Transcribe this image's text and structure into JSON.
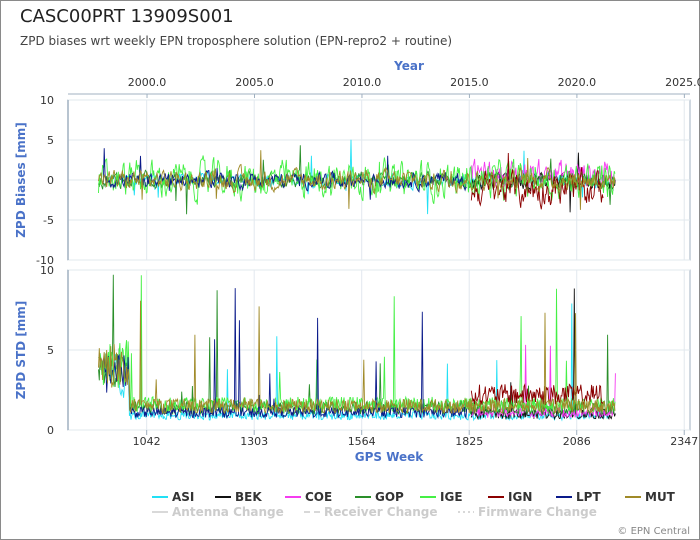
{
  "page": {
    "title": "CASC00PRT 13909S001",
    "subtitle": "ZPD biases wrt weekly EPN troposphere solution (EPN-repro2 + routine)",
    "credit": "© EPN Central"
  },
  "chart_data": [
    {
      "type": "line",
      "title": "",
      "ylabel": "ZPD Biases [mm]",
      "ylim": [
        -10,
        10
      ],
      "yticks": [
        "10",
        "5",
        "0",
        "-5",
        "-10"
      ],
      "xlabel_top": "Year",
      "xticks_top": [
        "2000.0",
        "2005.0",
        "2010.0",
        "2015.0",
        "2020.0",
        "2025.0"
      ],
      "xlim": [
        851,
        2361
      ],
      "grid": true
    },
    {
      "type": "line",
      "title": "",
      "ylabel": "ZPD STD [mm]",
      "ylim": [
        0,
        10
      ],
      "yticks": [
        "10",
        "5",
        "0"
      ],
      "xlabel": "GPS Week",
      "xticks": [
        "1042",
        "1303",
        "1564",
        "1825",
        "2086",
        "2347"
      ],
      "xlim": [
        851,
        2361
      ],
      "grid": true
    }
  ],
  "series": [
    {
      "name": "ASI",
      "color": "#22e0f5",
      "start": 950,
      "end": 2165,
      "bias_amp": 0.6,
      "std_base": 0.9
    },
    {
      "name": "BEK",
      "color": "#111111",
      "start": 1830,
      "end": 2180,
      "bias_amp": 0.8,
      "std_base": 1.0
    },
    {
      "name": "COE",
      "color": "#f53cf0",
      "start": 1830,
      "end": 2180,
      "bias_amp": 1.2,
      "std_base": 1.1
    },
    {
      "name": "GOP",
      "color": "#2a8f2a",
      "start": 925,
      "end": 2180,
      "bias_amp": 0.7,
      "std_base": 1.4
    },
    {
      "name": "IGE",
      "color": "#45f045",
      "start": 925,
      "end": 2180,
      "bias_amp": 1.6,
      "std_base": 1.6
    },
    {
      "name": "IGN",
      "color": "#8b0000",
      "start": 1830,
      "end": 2150,
      "bias_amp": 1.5,
      "std_base": 2.2
    },
    {
      "name": "LPT",
      "color": "#0a1a8a",
      "start": 935,
      "end": 1820,
      "bias_amp": 0.7,
      "std_base": 1.1
    },
    {
      "name": "MUT",
      "color": "#a08a28",
      "start": 925,
      "end": 2180,
      "bias_amp": 0.9,
      "std_base": 1.5
    }
  ],
  "legend_changes": [
    {
      "label": "Antenna Change",
      "color": "#cccccc",
      "dash": ""
    },
    {
      "label": "Receiver Change",
      "color": "#cccccc",
      "dash": "6,4"
    },
    {
      "label": "Firmware Change",
      "color": "#cccccc",
      "dash": "2,3"
    }
  ]
}
